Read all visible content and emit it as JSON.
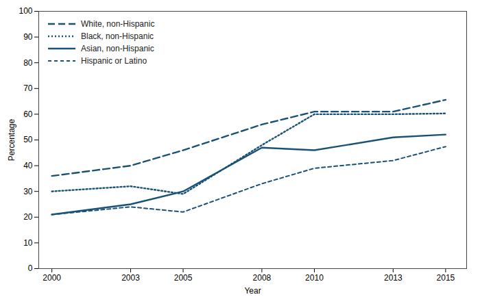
{
  "chart_data": {
    "type": "line",
    "x": [
      2000,
      2003,
      2005,
      2008,
      2010,
      2013,
      2015
    ],
    "series": [
      {
        "name": "White, non-Hispanic",
        "values": [
          36.0,
          40.0,
          46.0,
          56.0,
          61.0,
          61.0,
          65.6
        ],
        "line_style": "long_dash",
        "color": "#1a5276"
      },
      {
        "name": "Black, non-Hispanic",
        "values": [
          30.0,
          32.0,
          29.0,
          48.0,
          60.0,
          60.0,
          60.3
        ],
        "line_style": "dotted",
        "color": "#1a5276"
      },
      {
        "name": "Asian, non-Hispanic",
        "values": [
          21.0,
          25.0,
          30.0,
          47.0,
          46.0,
          51.0,
          52.1
        ],
        "line_style": "solid",
        "color": "#1a5276"
      },
      {
        "name": "Hispanic or Latino",
        "values": [
          21.0,
          24.0,
          22.0,
          33.0,
          39.0,
          42.0,
          47.4
        ],
        "line_style": "short_dash",
        "color": "#1a5276"
      }
    ],
    "xlabel": "Year",
    "ylabel": "Percentage",
    "xlim": [
      1999.5,
      2015.8
    ],
    "xticks": [
      2000,
      2003,
      2005,
      2008,
      2010,
      2013,
      2015
    ],
    "ylim": [
      0,
      100
    ],
    "yticks": [
      0,
      10,
      20,
      30,
      40,
      50,
      60,
      70,
      80,
      90,
      100
    ],
    "grid": false,
    "legend": "upper left"
  }
}
